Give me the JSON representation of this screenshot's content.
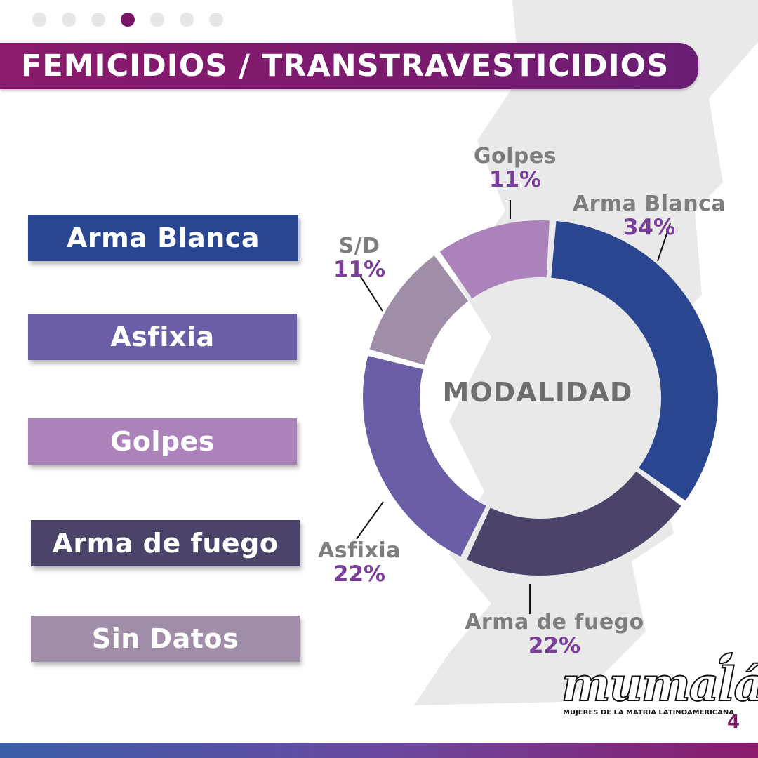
{
  "pagination": {
    "count": 7,
    "active_index": 3
  },
  "title": "FEMICIDIOS / TRANSTRAVESTICIDIOS",
  "legend": [
    {
      "label": "Arma Blanca",
      "color": "#2b4690"
    },
    {
      "label": "Asfixia",
      "color": "#6c5ea6"
    },
    {
      "label": "Golpes",
      "color": "#ac82bb"
    },
    {
      "label": "Arma de fuego",
      "color": "#4b4369"
    },
    {
      "label": "Sin Datos",
      "color": "#a08ea9"
    }
  ],
  "chart_data": {
    "type": "pie",
    "variant": "donut",
    "center_label": "MODALIDAD",
    "slices": [
      {
        "label": "Arma Blanca",
        "value": 34,
        "value_label": "34%",
        "color": "#2b4690"
      },
      {
        "label": "Arma de fuego",
        "value": 22,
        "value_label": "22%",
        "color": "#4b4369"
      },
      {
        "label": "Asfixia",
        "value": 22,
        "value_label": "22%",
        "color": "#6c5ea6"
      },
      {
        "label": "S/D",
        "value": 11,
        "value_label": "11%",
        "color": "#a08ea9"
      },
      {
        "label": "Golpes",
        "value": 11,
        "value_label": "11%",
        "color": "#ac82bb"
      }
    ]
  },
  "logo": {
    "name": "mumalá",
    "tagline": "MUJERES DE LA MATRIA LATINOAMERICANA"
  },
  "page_number": "4",
  "colors": {
    "accent": "#7b1567",
    "map_gray": "#e9e9e9"
  }
}
